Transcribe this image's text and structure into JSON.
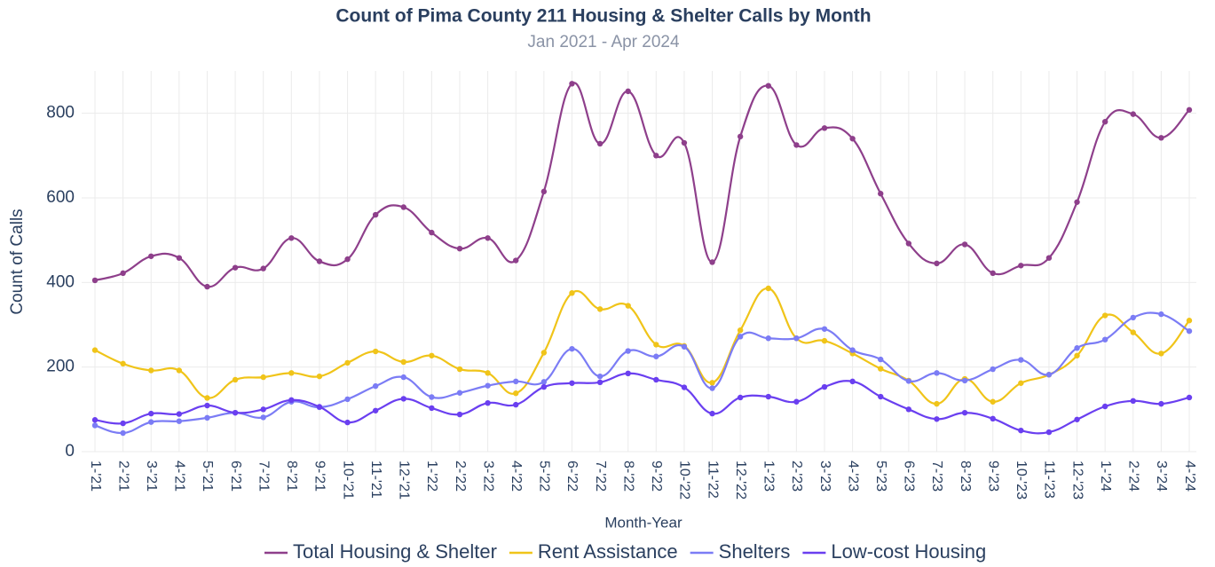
{
  "chart_data": {
    "type": "line",
    "title": "Count of Pima County 211 Housing & Shelter Calls by Month",
    "subtitle": "Jan 2021 - Apr 2024",
    "x_label": "Month-Year",
    "y_label": "Count of Calls",
    "categories": [
      "1-'21",
      "2-'21",
      "3-'21",
      "4-'21",
      "5-'21",
      "6-'21",
      "7-'21",
      "8-'21",
      "9-'21",
      "10-'21",
      "11-'21",
      "12-'21",
      "1-'22",
      "2-'22",
      "3-'22",
      "4-'22",
      "5-'22",
      "6-'22",
      "7-'22",
      "8-'22",
      "9-'22",
      "10-'22",
      "11-'22",
      "12-'22",
      "1-'23",
      "2-'23",
      "3-'23",
      "4-'23",
      "5-'23",
      "6-'23",
      "7-'23",
      "8-'23",
      "9-'23",
      "10-'23",
      "11-'23",
      "12-'23",
      "1-'24",
      "2-'24",
      "3-'24",
      "4-'24"
    ],
    "series": [
      {
        "name": "Total Housing & Shelter",
        "color": "#8e3f8b",
        "values": [
          405,
          422,
          462,
          458,
          390,
          435,
          433,
          505,
          450,
          455,
          560,
          578,
          518,
          480,
          505,
          452,
          615,
          870,
          728,
          852,
          700,
          730,
          448,
          745,
          865,
          725,
          765,
          740,
          610,
          492,
          445,
          490,
          422,
          440,
          458,
          590,
          780,
          798,
          742,
          808
        ]
      },
      {
        "name": "Rent Assistance",
        "color": "#f0c419",
        "values": [
          240,
          208,
          192,
          192,
          127,
          170,
          176,
          186,
          178,
          210,
          237,
          212,
          227,
          195,
          186,
          138,
          234,
          375,
          337,
          345,
          253,
          250,
          163,
          287,
          386,
          268,
          262,
          232,
          196,
          168,
          113,
          172,
          118,
          162,
          182,
          227,
          322,
          282,
          232,
          310
        ]
      },
      {
        "name": "Shelters",
        "color": "#7b7cf5",
        "values": [
          62,
          44,
          70,
          72,
          80,
          92,
          81,
          118,
          105,
          124,
          155,
          176,
          129,
          139,
          156,
          166,
          165,
          243,
          178,
          238,
          225,
          248,
          150,
          272,
          268,
          268,
          290,
          240,
          218,
          167,
          186,
          168,
          195,
          217,
          182,
          245,
          265,
          317,
          325,
          285
        ]
      },
      {
        "name": "Low-cost Housing",
        "color": "#6a3ff0",
        "values": [
          75,
          67,
          90,
          89,
          109,
          92,
          100,
          122,
          106,
          69,
          97,
          125,
          103,
          88,
          115,
          111,
          153,
          162,
          164,
          185,
          170,
          152,
          90,
          128,
          130,
          118,
          153,
          166,
          130,
          100,
          77,
          92,
          78,
          50,
          46,
          76,
          107,
          120,
          113,
          128
        ]
      }
    ],
    "ylim": [
      0,
      900
    ],
    "yticks": [
      0,
      200,
      400,
      600,
      800
    ],
    "grid": true,
    "legend": "bottom"
  }
}
